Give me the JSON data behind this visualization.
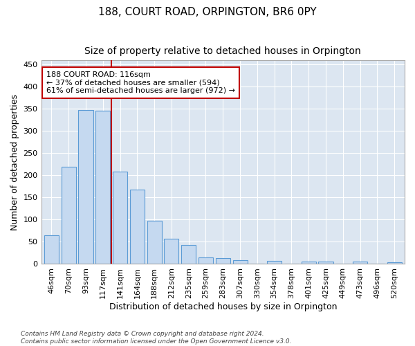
{
  "title": "188, COURT ROAD, ORPINGTON, BR6 0PY",
  "subtitle": "Size of property relative to detached houses in Orpington",
  "xlabel": "Distribution of detached houses by size in Orpington",
  "ylabel": "Number of detached properties",
  "bar_color": "#c5d9f0",
  "bar_edge_color": "#5b9bd5",
  "plot_bg_color": "#dce6f1",
  "categories": [
    "46sqm",
    "70sqm",
    "93sqm",
    "117sqm",
    "141sqm",
    "164sqm",
    "188sqm",
    "212sqm",
    "235sqm",
    "259sqm",
    "283sqm",
    "307sqm",
    "330sqm",
    "354sqm",
    "378sqm",
    "401sqm",
    "425sqm",
    "449sqm",
    "473sqm",
    "496sqm",
    "520sqm"
  ],
  "values": [
    65,
    220,
    347,
    345,
    208,
    168,
    97,
    57,
    43,
    14,
    13,
    8,
    0,
    7,
    0,
    6,
    5,
    0,
    5,
    0,
    4
  ],
  "ylim": [
    0,
    460
  ],
  "yticks": [
    0,
    50,
    100,
    150,
    200,
    250,
    300,
    350,
    400,
    450
  ],
  "vline_x": 3.5,
  "annotation_text": "188 COURT ROAD: 116sqm\n← 37% of detached houses are smaller (594)\n61% of semi-detached houses are larger (972) →",
  "footer_line1": "Contains HM Land Registry data © Crown copyright and database right 2024.",
  "footer_line2": "Contains public sector information licensed under the Open Government Licence v3.0.",
  "grid_color": "#ffffff",
  "vline_color": "#c00000",
  "title_fontsize": 11,
  "subtitle_fontsize": 10,
  "tick_fontsize": 8,
  "ylabel_fontsize": 9,
  "xlabel_fontsize": 9,
  "annotation_fontsize": 8
}
